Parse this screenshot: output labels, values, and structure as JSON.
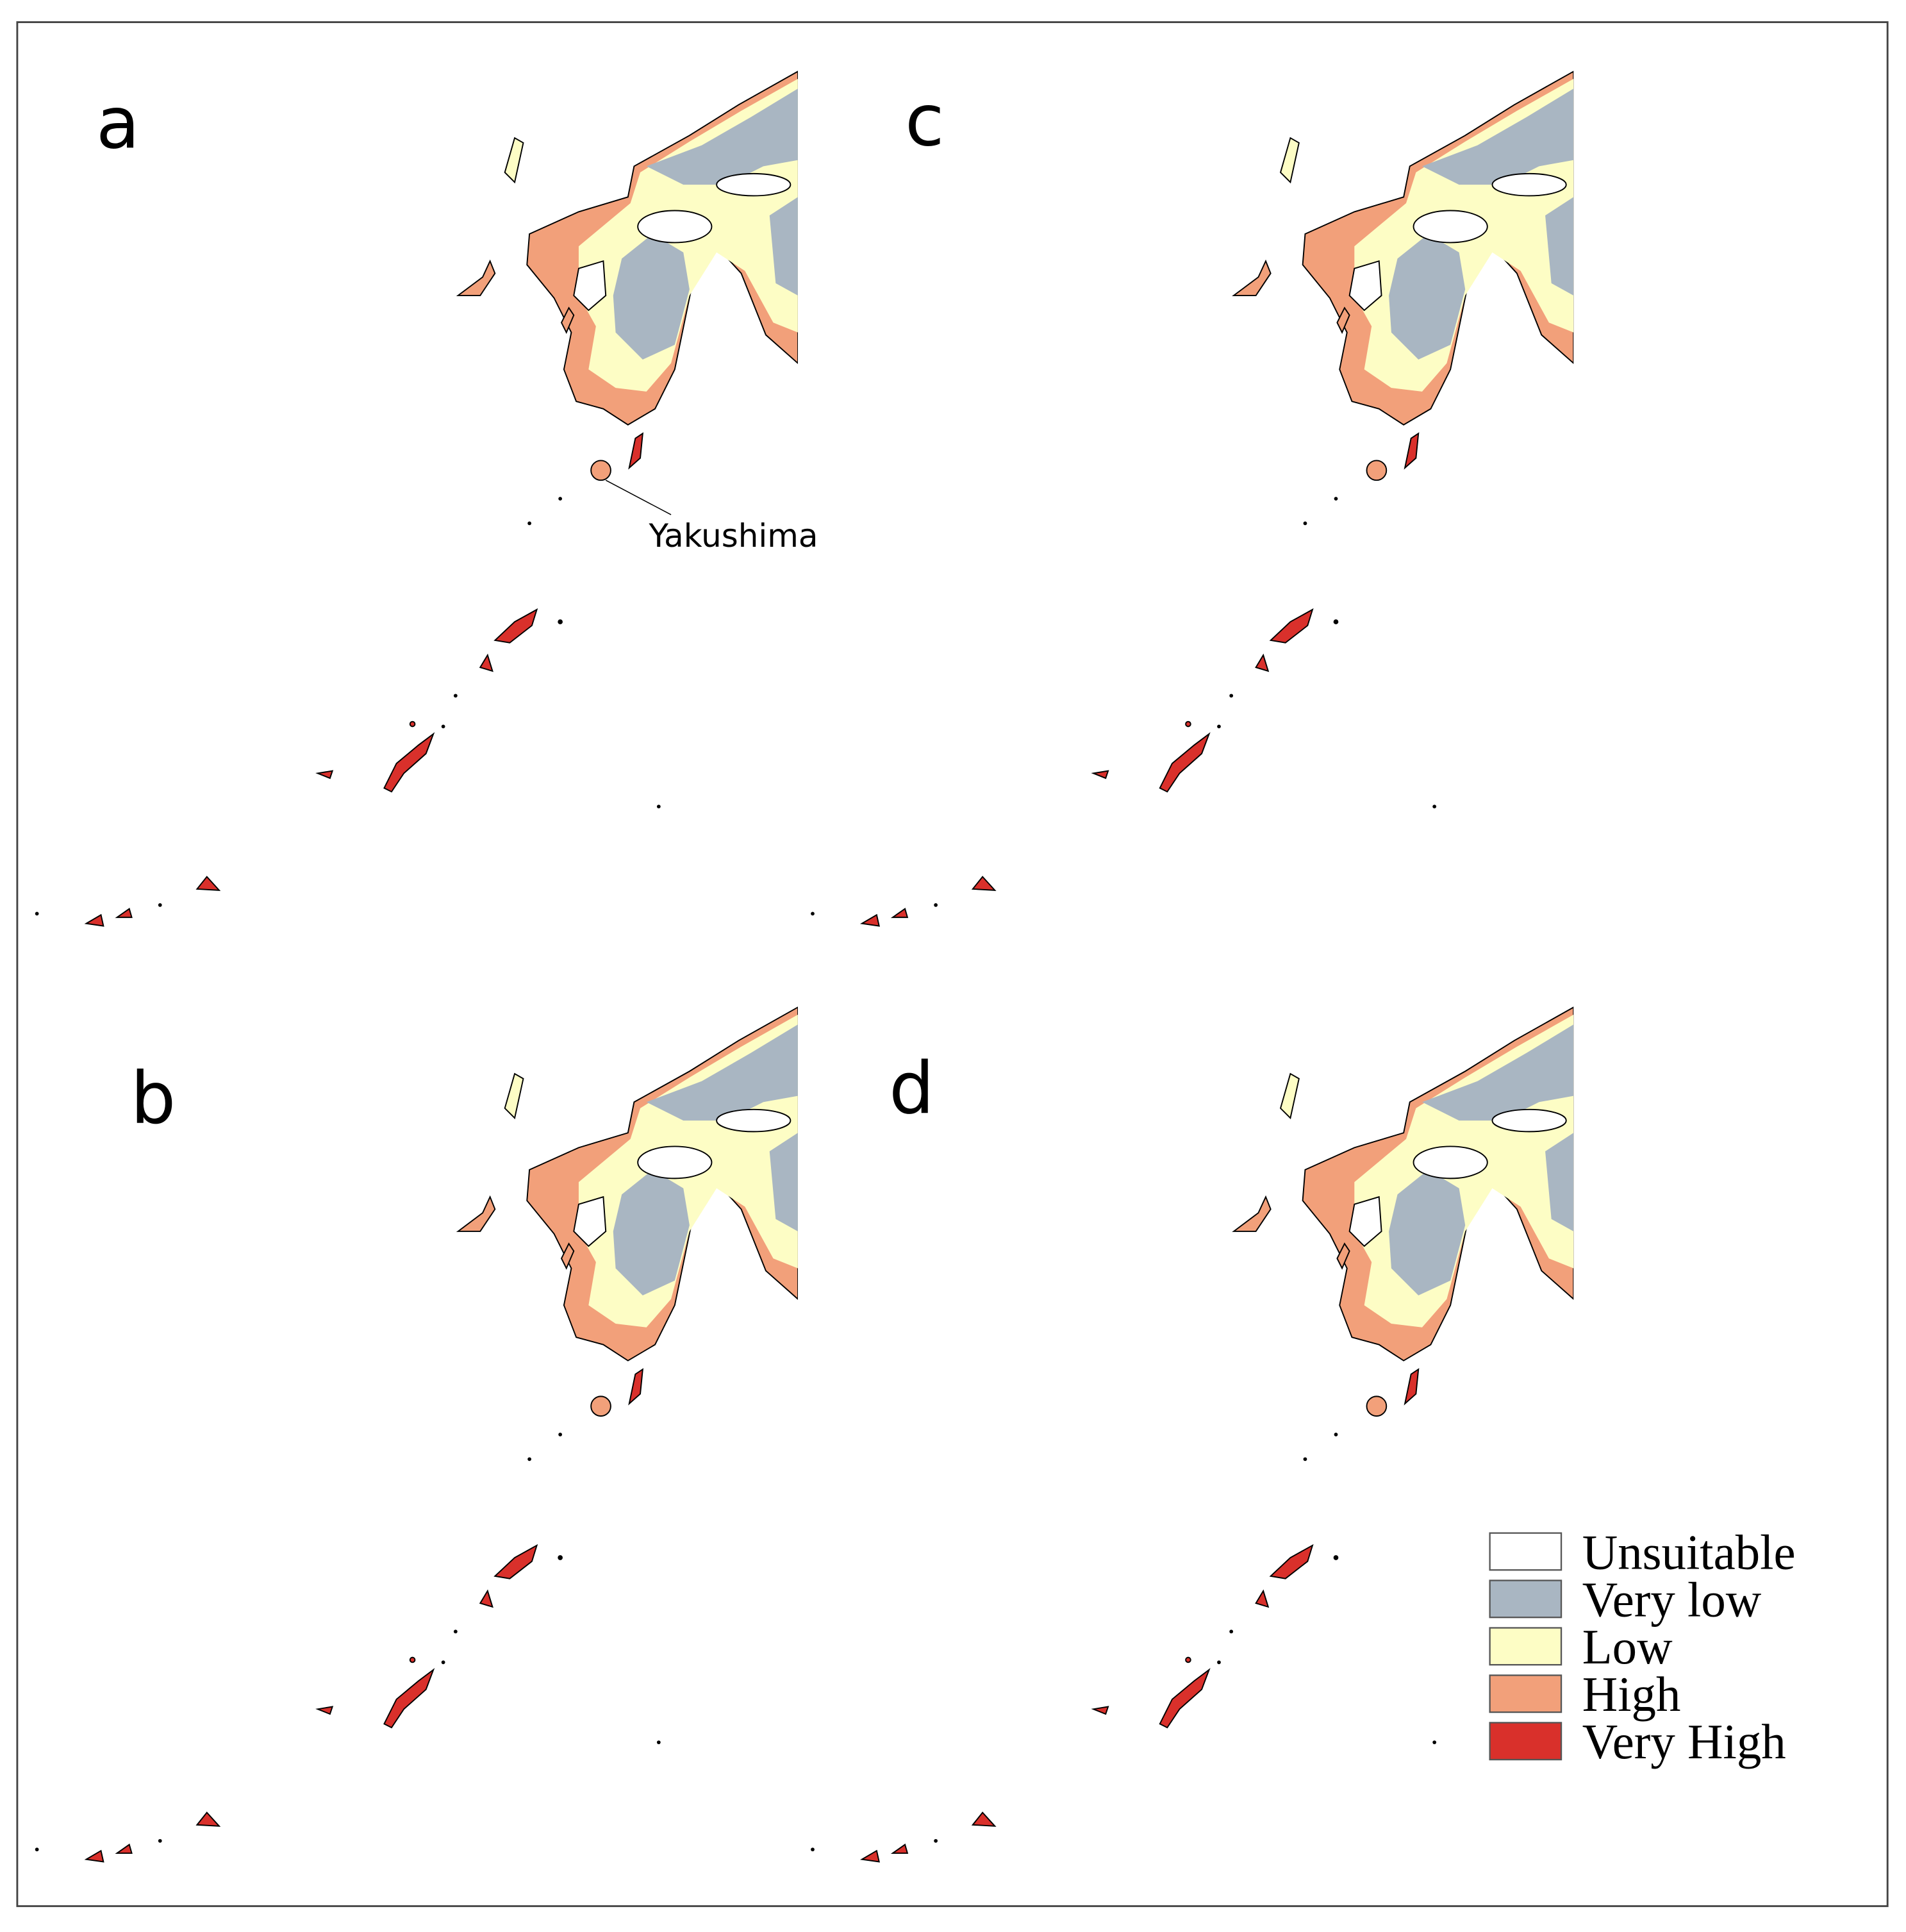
{
  "panels": [
    {
      "label": "a"
    },
    {
      "label": "b"
    },
    {
      "label": "c"
    },
    {
      "label": "d"
    }
  ],
  "annotation": {
    "text": "Yakushima"
  },
  "legend": {
    "items": [
      {
        "label": "Unsuitable",
        "color": "#ffffff"
      },
      {
        "label": "Very low",
        "color": "#a9b6c2"
      },
      {
        "label": "Low",
        "color": "#fdfdc5"
      },
      {
        "label": "High",
        "color": "#f2a07a"
      },
      {
        "label": "Very High",
        "color": "#d9302b"
      }
    ]
  }
}
